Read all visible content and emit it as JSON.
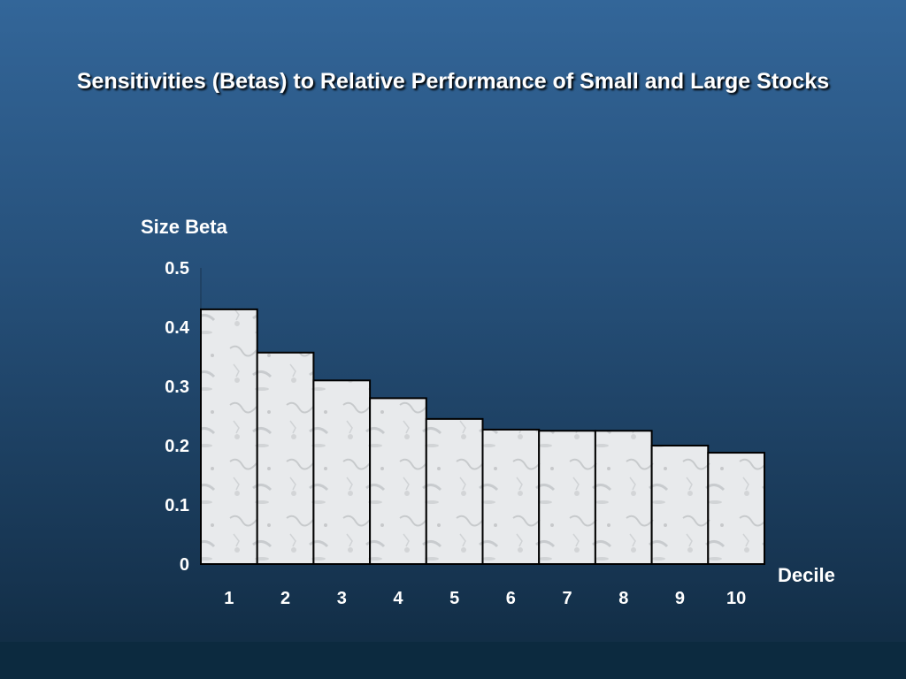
{
  "title": "Sensitivities (Betas) to Relative Performance of Small and Large Stocks",
  "colors": {
    "background_top": "#336699",
    "background_bottom": "#0f2a40",
    "bar_fill": "#e6e8ea",
    "bar_stroke": "#000000",
    "text": "#ffffff"
  },
  "chart_data": {
    "type": "bar",
    "ylabel": "Size Beta",
    "xlabel": "Decile",
    "categories": [
      "1",
      "2",
      "3",
      "4",
      "5",
      "6",
      "7",
      "8",
      "9",
      "10"
    ],
    "values": [
      0.43,
      0.357,
      0.31,
      0.28,
      0.245,
      0.227,
      0.225,
      0.225,
      0.2,
      0.188
    ],
    "ylim": [
      0,
      0.5
    ],
    "yticks": [
      "0",
      "0.1",
      "0.2",
      "0.3",
      "0.4",
      "0.5"
    ],
    "grid": false,
    "legend": false
  }
}
